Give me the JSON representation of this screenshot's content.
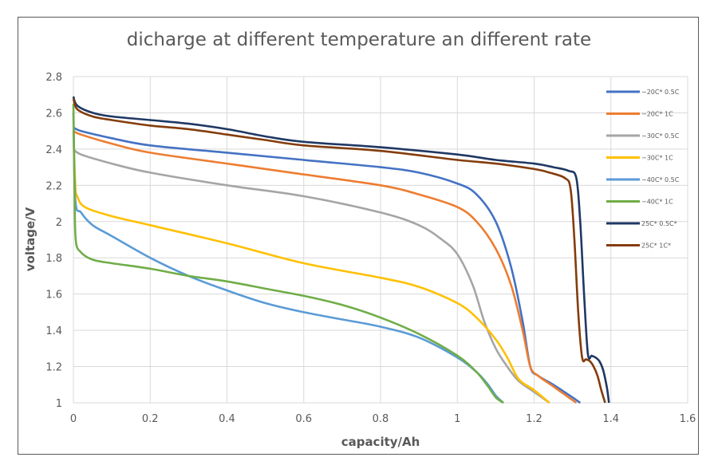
{
  "chart_data": {
    "type": "line",
    "title": "dicharge at different temperature an different rate",
    "xlabel": "capacity/Ah",
    "ylabel": "voltage/V",
    "xlim": [
      0,
      1.6
    ],
    "ylim": [
      1,
      2.8
    ],
    "xticks": [
      "0",
      "0.2",
      "0.4",
      "0.6",
      "0.8",
      "1",
      "1.2",
      "1.4",
      "1.6"
    ],
    "yticks": [
      "1",
      "1.2",
      "1.4",
      "1.6",
      "1.8",
      "2",
      "2.2",
      "2.4",
      "2.6",
      "2.8"
    ],
    "xtick_values": [
      0,
      0.2,
      0.4,
      0.6,
      0.8,
      1,
      1.2,
      1.4,
      1.6
    ],
    "ytick_values": [
      1,
      1.2,
      1.4,
      1.6,
      1.8,
      2,
      2.2,
      2.4,
      2.6,
      2.8
    ],
    "grid": true,
    "legend_position": "right",
    "series": [
      {
        "name": "−20C* 0.5C",
        "color": "#4472C4",
        "x": [
          0,
          0.02,
          0.1,
          0.2,
          0.4,
          0.6,
          0.8,
          0.9,
          1.0,
          1.05,
          1.1,
          1.14,
          1.17,
          1.19,
          1.21,
          1.25,
          1.3,
          1.32
        ],
        "y": [
          2.52,
          2.5,
          2.46,
          2.42,
          2.38,
          2.34,
          2.3,
          2.27,
          2.21,
          2.15,
          2.0,
          1.75,
          1.45,
          1.2,
          1.15,
          1.1,
          1.03,
          1.0
        ]
      },
      {
        "name": "−20C* 1C",
        "color": "#ED7D31",
        "x": [
          0,
          0.02,
          0.1,
          0.2,
          0.4,
          0.6,
          0.8,
          0.9,
          1.0,
          1.05,
          1.1,
          1.14,
          1.17,
          1.19,
          1.21,
          1.25,
          1.29,
          1.31
        ],
        "y": [
          2.5,
          2.48,
          2.43,
          2.38,
          2.32,
          2.26,
          2.2,
          2.15,
          2.08,
          2.0,
          1.85,
          1.65,
          1.4,
          1.2,
          1.15,
          1.09,
          1.03,
          1.0
        ]
      },
      {
        "name": "−30C* 0.5C",
        "color": "#A5A5A5",
        "x": [
          0,
          0.02,
          0.1,
          0.2,
          0.4,
          0.6,
          0.8,
          0.9,
          0.96,
          1.0,
          1.04,
          1.07,
          1.1,
          1.13,
          1.16,
          1.2,
          1.24
        ],
        "y": [
          2.4,
          2.37,
          2.32,
          2.27,
          2.2,
          2.14,
          2.05,
          1.98,
          1.9,
          1.82,
          1.65,
          1.45,
          1.3,
          1.2,
          1.12,
          1.06,
          1.0
        ]
      },
      {
        "name": "−30C* 1C",
        "color": "#FFC000",
        "x": [
          0,
          0.005,
          0.01,
          0.03,
          0.1,
          0.2,
          0.4,
          0.6,
          0.8,
          0.9,
          1.0,
          1.05,
          1.1,
          1.13,
          1.16,
          1.2,
          1.24
        ],
        "y": [
          2.5,
          2.2,
          2.14,
          2.08,
          2.03,
          1.98,
          1.88,
          1.77,
          1.69,
          1.64,
          1.55,
          1.47,
          1.35,
          1.25,
          1.13,
          1.07,
          1.0
        ]
      },
      {
        "name": "−40C* 0.5C",
        "color": "#5B9BD5",
        "x": [
          0,
          0.005,
          0.02,
          0.05,
          0.1,
          0.2,
          0.3,
          0.4,
          0.5,
          0.6,
          0.7,
          0.8,
          0.9,
          1.0,
          1.05,
          1.08,
          1.1,
          1.12
        ],
        "y": [
          2.6,
          2.12,
          2.05,
          1.98,
          1.92,
          1.8,
          1.7,
          1.62,
          1.55,
          1.5,
          1.46,
          1.42,
          1.36,
          1.25,
          1.17,
          1.1,
          1.04,
          1.0
        ]
      },
      {
        "name": "−40C* 1C",
        "color": "#70AD47",
        "x": [
          0,
          0.003,
          0.006,
          0.02,
          0.05,
          0.1,
          0.2,
          0.3,
          0.4,
          0.5,
          0.6,
          0.7,
          0.8,
          0.9,
          1.0,
          1.05,
          1.08,
          1.1,
          1.12
        ],
        "y": [
          2.65,
          2.2,
          1.9,
          1.83,
          1.79,
          1.77,
          1.74,
          1.7,
          1.67,
          1.63,
          1.59,
          1.54,
          1.47,
          1.38,
          1.26,
          1.17,
          1.09,
          1.03,
          1.0
        ]
      },
      {
        "name": "25C* 0.5C*",
        "color": "#1F3864",
        "x": [
          0,
          0.01,
          0.05,
          0.1,
          0.2,
          0.3,
          0.4,
          0.5,
          0.6,
          0.8,
          1.0,
          1.1,
          1.2,
          1.25,
          1.29,
          1.31,
          1.32,
          1.33,
          1.34,
          1.35,
          1.36,
          1.37,
          1.38,
          1.39,
          1.395
        ],
        "y": [
          2.69,
          2.64,
          2.6,
          2.58,
          2.56,
          2.54,
          2.51,
          2.47,
          2.44,
          2.41,
          2.37,
          2.34,
          2.32,
          2.3,
          2.28,
          2.24,
          2.0,
          1.6,
          1.27,
          1.26,
          1.25,
          1.23,
          1.18,
          1.08,
          1.0
        ]
      },
      {
        "name": "25C* 1C*",
        "color": "#843C0C",
        "x": [
          0,
          0.01,
          0.05,
          0.1,
          0.2,
          0.3,
          0.4,
          0.5,
          0.6,
          0.8,
          1.0,
          1.1,
          1.2,
          1.24,
          1.28,
          1.295,
          1.305,
          1.315,
          1.325,
          1.335,
          1.345,
          1.355,
          1.365,
          1.375,
          1.385
        ],
        "y": [
          2.68,
          2.62,
          2.58,
          2.56,
          2.53,
          2.51,
          2.48,
          2.45,
          2.42,
          2.39,
          2.34,
          2.32,
          2.29,
          2.27,
          2.24,
          2.18,
          1.9,
          1.5,
          1.25,
          1.24,
          1.23,
          1.2,
          1.15,
          1.07,
          1.0
        ]
      }
    ]
  }
}
